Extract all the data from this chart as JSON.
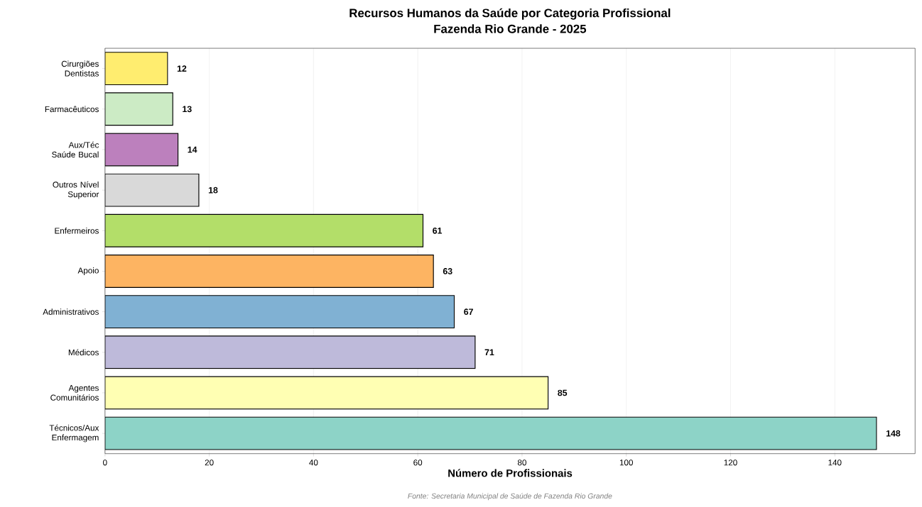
{
  "chart_data": {
    "type": "bar",
    "orientation": "horizontal",
    "title": "Recursos Humanos da Saúde por Categoria Profissional",
    "subtitle": "Fazenda Rio Grande - 2025",
    "xlabel": "Número de Profissionais",
    "categories": [
      "Cirurgiões Dentistas",
      "Farmacêuticos",
      "Aux/Téc Saúde Bucal",
      "Outros Nível Superior",
      "Enfermeiros",
      "Apoio",
      "Administrativos",
      "Médicos",
      "Agentes Comunitários",
      "Técnicos/Aux Enfermagem"
    ],
    "values": [
      12,
      13,
      14,
      18,
      61,
      63,
      67,
      71,
      85,
      148
    ],
    "colors": [
      "#ffed6f",
      "#ccebc5",
      "#bc80bd",
      "#d9d9d9",
      "#b3de69",
      "#fdb462",
      "#80b1d3",
      "#bebada",
      "#ffffb3",
      "#8dd3c7"
    ],
    "xlim": [
      0,
      155.4
    ],
    "xticks": [
      0,
      20,
      40,
      60,
      80,
      100,
      120,
      140
    ],
    "grid": "x",
    "data_labels": true,
    "annotations": [
      "Fonte: Secretaria Municipal de Saúde de Fazenda Rio Grande"
    ]
  }
}
